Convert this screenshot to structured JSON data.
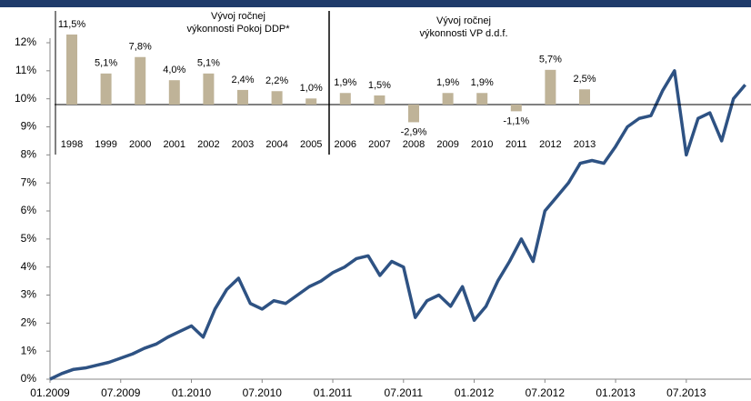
{
  "chart_data": [
    {
      "type": "line",
      "x": [
        "01.2009",
        "02.2009",
        "03.2009",
        "04.2009",
        "05.2009",
        "06.2009",
        "07.2009",
        "08.2009",
        "09.2009",
        "10.2009",
        "11.2009",
        "12.2009",
        "01.2010",
        "02.2010",
        "03.2010",
        "04.2010",
        "05.2010",
        "06.2010",
        "07.2010",
        "08.2010",
        "09.2010",
        "10.2010",
        "11.2010",
        "12.2010",
        "01.2011",
        "02.2011",
        "03.2011",
        "04.2011",
        "05.2011",
        "06.2011",
        "07.2011",
        "08.2011",
        "09.2011",
        "10.2011",
        "11.2011",
        "12.2011",
        "01.2012",
        "02.2012",
        "03.2012",
        "04.2012",
        "05.2012",
        "06.2012",
        "07.2012",
        "08.2012",
        "09.2012",
        "10.2012",
        "11.2012",
        "12.2012",
        "01.2013",
        "02.2013",
        "03.2013",
        "04.2013",
        "05.2013",
        "06.2013",
        "07.2013",
        "08.2013",
        "09.2013",
        "10.2013",
        "11.2013",
        "12.2013"
      ],
      "series": [
        {
          "name": "VP",
          "color": "#2e5283",
          "values": [
            0.0,
            0.2,
            0.35,
            0.4,
            0.5,
            0.6,
            0.75,
            0.9,
            1.1,
            1.25,
            1.5,
            1.7,
            1.9,
            1.5,
            2.5,
            3.2,
            3.6,
            2.7,
            2.5,
            2.8,
            2.7,
            3.0,
            3.3,
            3.5,
            3.8,
            4.0,
            4.3,
            4.4,
            3.7,
            4.2,
            4.0,
            2.2,
            2.8,
            3.0,
            2.6,
            3.3,
            2.1,
            2.6,
            3.5,
            4.2,
            5.0,
            4.2,
            6.0,
            6.5,
            7.0,
            7.7,
            7.8,
            7.7,
            8.3,
            9.0,
            9.3,
            9.4,
            10.3,
            11.0,
            8.0,
            9.3,
            9.5,
            8.5,
            10.0,
            10.5
          ]
        }
      ],
      "xticks": [
        "01.2009",
        "07.2009",
        "01.2010",
        "07.2010",
        "01.2011",
        "07.2011",
        "01.2012",
        "07.2012",
        "01.2013",
        "07.2013"
      ],
      "ylim": [
        0,
        12
      ],
      "yticks": [
        {
          "value": 0,
          "label": "0%"
        },
        {
          "value": 1,
          "label": "1%"
        },
        {
          "value": 2,
          "label": "2%"
        },
        {
          "value": 3,
          "label": "3%"
        },
        {
          "value": 4,
          "label": "4%"
        },
        {
          "value": 5,
          "label": "5%"
        },
        {
          "value": 6,
          "label": "6%"
        },
        {
          "value": 7,
          "label": "7%"
        },
        {
          "value": 8,
          "label": "8%"
        },
        {
          "value": 9,
          "label": "9%"
        },
        {
          "value": 10,
          "label": "10%"
        },
        {
          "value": 11,
          "label": "11%"
        },
        {
          "value": 12,
          "label": "12%"
        }
      ]
    },
    {
      "type": "bar",
      "annotations": [
        [
          "Vývoj  ročnej",
          "výkonnosti Pokoj DDP*"
        ],
        [
          "Vývoj  ročnej",
          "výkonnosti VP d.d.f."
        ]
      ],
      "categories": [
        "1998",
        "1999",
        "2000",
        "2001",
        "2002",
        "2003",
        "2004",
        "2005",
        "2006",
        "2007",
        "2008",
        "2009",
        "2010",
        "2011",
        "2012",
        "2013"
      ],
      "values": [
        11.5,
        5.1,
        7.8,
        4.0,
        5.1,
        2.4,
        2.2,
        1.0,
        1.9,
        1.5,
        -2.9,
        1.9,
        1.9,
        -1.1,
        5.7,
        2.5
      ],
      "value_labels": [
        "11,5%",
        "5,1%",
        "7,8%",
        "4,0%",
        "5,1%",
        "2,4%",
        "2,2%",
        "1,0%",
        "1,9%",
        "1,5%",
        "-2,9%",
        "1,9%",
        "1,9%",
        "-1,1%",
        "5,7%",
        "2,5%"
      ],
      "color": "#bfb398"
    }
  ]
}
